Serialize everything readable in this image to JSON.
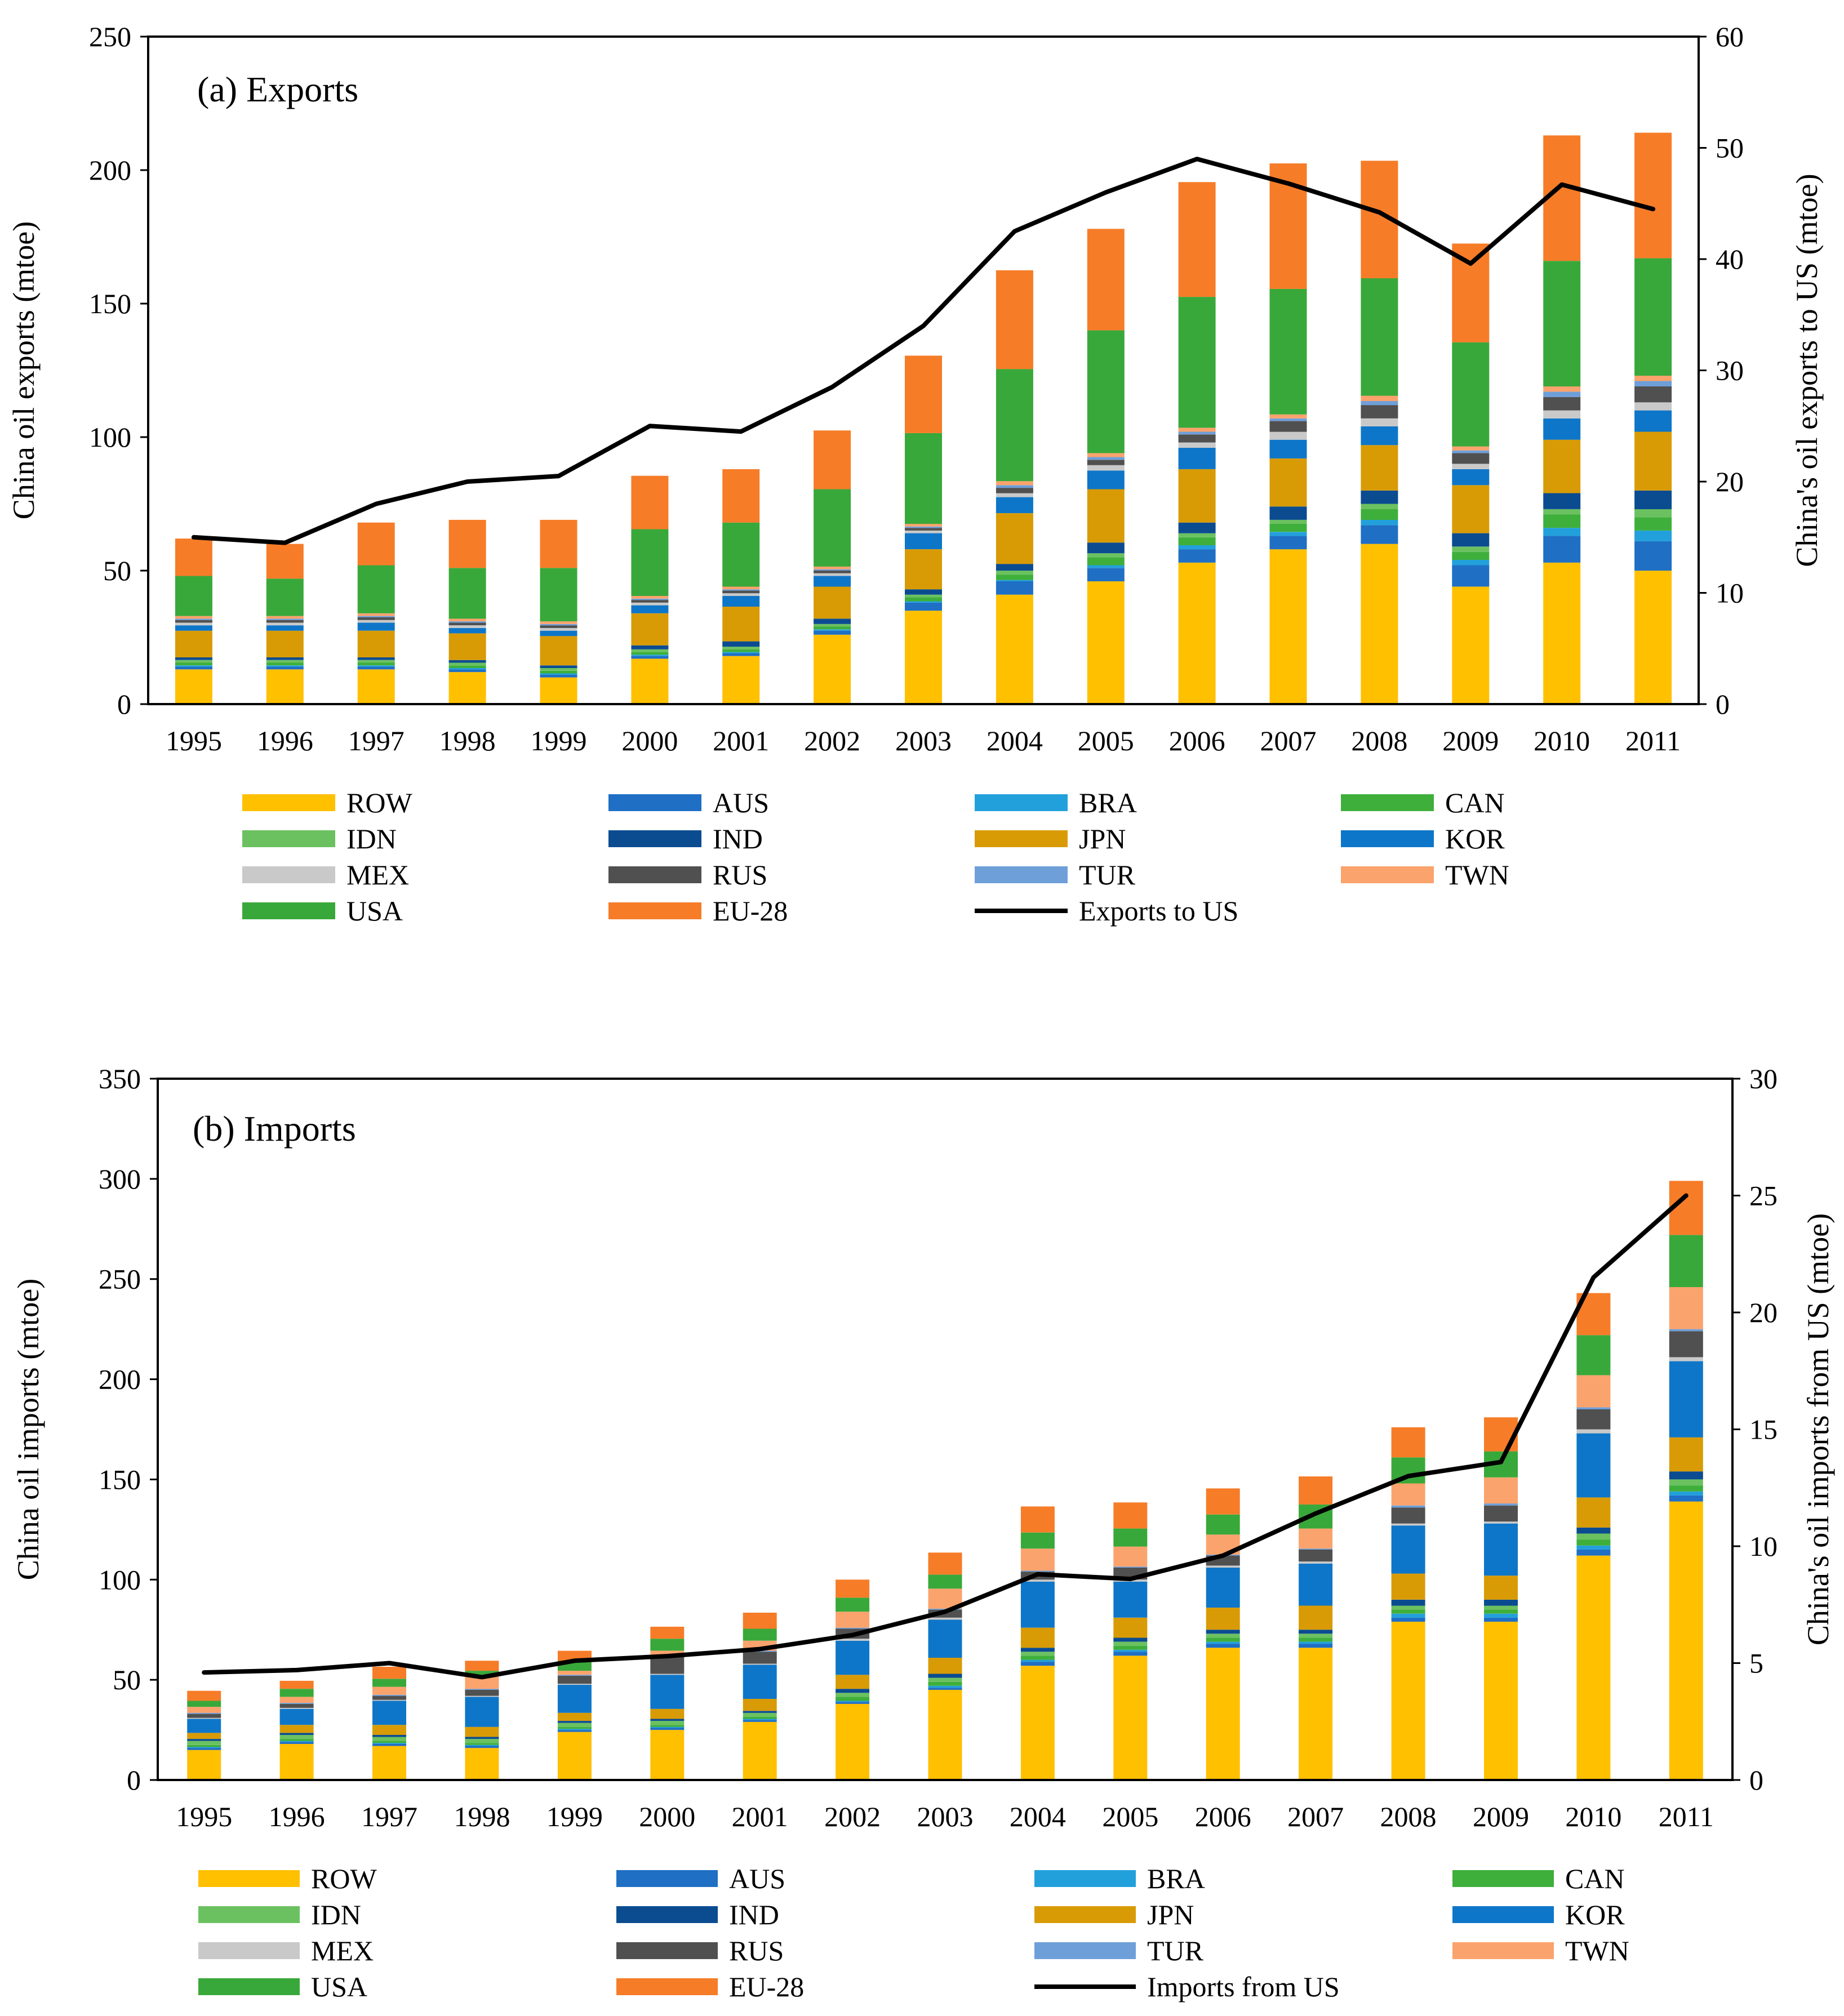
{
  "colors": {
    "ROW": "#FFC000",
    "AUS": "#1F6FC4",
    "BRA": "#22A0DB",
    "CAN": "#3FAF3B",
    "IDN": "#6BC160",
    "IND": "#0B4C91",
    "JPN": "#D89B05",
    "KOR": "#0E76C8",
    "MEX": "#C9C9C9",
    "RUS": "#505050",
    "TUR": "#6E9FD9",
    "TWN": "#FBA36C",
    "USA": "#39A83A",
    "EU-28": "#F67C28",
    "line": "#000000"
  },
  "legend_order": [
    "ROW",
    "AUS",
    "BRA",
    "CAN",
    "IDN",
    "IND",
    "JPN",
    "KOR",
    "MEX",
    "RUS",
    "TUR",
    "TWN",
    "USA",
    "EU-28"
  ],
  "chart_data": [
    {
      "type": "bar",
      "stacked": true,
      "title": "(a) Exports",
      "ylabel": "China oil exports (mtoe)",
      "y2label": "China's oil exports to US (mtoe)",
      "ylim": [
        0,
        250
      ],
      "yticks": [
        0,
        50,
        100,
        150,
        200,
        250
      ],
      "y2lim": [
        0,
        60
      ],
      "y2ticks": [
        0,
        10,
        20,
        30,
        40,
        50,
        60
      ],
      "categories": [
        "1995",
        "1996",
        "1997",
        "1998",
        "1999",
        "2000",
        "2001",
        "2002",
        "2003",
        "2004",
        "2005",
        "2006",
        "2007",
        "2008",
        "2009",
        "2010",
        "2011"
      ],
      "series": [
        {
          "name": "ROW",
          "values": [
            13,
            13,
            13,
            12,
            10,
            17,
            18,
            26,
            35,
            41,
            46,
            53,
            58,
            60,
            44,
            53,
            50
          ]
        },
        {
          "name": "AUS",
          "values": [
            1,
            1,
            1,
            1,
            1,
            1,
            1,
            1.5,
            3,
            5,
            5,
            5,
            5,
            7,
            8,
            10,
            11
          ]
        },
        {
          "name": "BRA",
          "values": [
            0.5,
            0.5,
            0.5,
            0.5,
            0.5,
            0.5,
            0.5,
            0.5,
            0.5,
            0.5,
            1,
            1.5,
            1.5,
            2,
            2,
            3,
            4
          ]
        },
        {
          "name": "CAN",
          "values": [
            1,
            1,
            1,
            1,
            1,
            1,
            1,
            1,
            1.5,
            2,
            3,
            3,
            3,
            4,
            3,
            5,
            5
          ]
        },
        {
          "name": "IDN",
          "values": [
            1,
            1,
            1,
            1,
            1,
            1,
            1,
            1,
            1,
            1.5,
            1.5,
            1.5,
            1.5,
            2,
            2,
            2,
            3
          ]
        },
        {
          "name": "IND",
          "values": [
            1,
            1,
            1,
            1,
            1,
            1.5,
            2,
            2,
            2,
            2.5,
            4,
            4,
            5,
            5,
            5,
            6,
            7
          ]
        },
        {
          "name": "JPN",
          "values": [
            10,
            10,
            10,
            10,
            11,
            12,
            13,
            12,
            15,
            19,
            20,
            20,
            18,
            17,
            18,
            20,
            22
          ]
        },
        {
          "name": "KOR",
          "values": [
            2,
            2,
            3,
            2,
            2,
            3,
            4,
            4,
            6,
            6,
            7,
            8,
            7,
            7,
            6,
            8,
            8
          ]
        },
        {
          "name": "MEX",
          "values": [
            1,
            1,
            1,
            1,
            1,
            1,
            1,
            1,
            1,
            1.5,
            2,
            2,
            3,
            3,
            2,
            3,
            3
          ]
        },
        {
          "name": "RUS",
          "values": [
            1,
            1,
            1,
            1,
            1,
            1,
            1,
            1,
            1,
            2,
            2,
            3,
            4,
            5,
            4,
            5,
            6
          ]
        },
        {
          "name": "TUR",
          "values": [
            0.5,
            0.5,
            0.5,
            0.5,
            0.5,
            0.5,
            0.5,
            0.5,
            0.5,
            1,
            1,
            1,
            1,
            1.5,
            1,
            2,
            2
          ]
        },
        {
          "name": "TWN",
          "values": [
            1,
            1,
            1,
            1,
            1,
            1,
            1,
            1,
            1,
            1.5,
            1.5,
            1.5,
            1.5,
            2,
            1.5,
            2,
            2
          ]
        },
        {
          "name": "USA",
          "values": [
            15,
            14,
            18,
            19,
            20,
            25,
            24,
            29,
            34,
            42,
            46,
            49,
            47,
            44,
            39,
            47,
            44
          ]
        },
        {
          "name": "EU-28",
          "values": [
            14,
            13,
            16,
            18,
            18,
            20,
            20,
            22,
            29,
            37,
            38,
            43,
            47,
            44,
            37,
            47,
            47
          ]
        }
      ],
      "line": {
        "name": "Exports to US",
        "values": [
          15,
          14.5,
          18,
          20,
          20.5,
          25,
          24.5,
          28.5,
          34,
          42.5,
          46,
          49,
          46.8,
          44.2,
          39.6,
          46.7,
          44.5
        ]
      }
    },
    {
      "type": "bar",
      "stacked": true,
      "title": "(b) Imports",
      "ylabel": "China oil imports (mtoe)",
      "y2label": "China's oil imports  from US (mtoe)",
      "ylim": [
        0,
        350
      ],
      "yticks": [
        0,
        50,
        100,
        150,
        200,
        250,
        300,
        350
      ],
      "y2lim": [
        0,
        30
      ],
      "y2ticks": [
        0,
        5,
        10,
        15,
        20,
        25,
        30
      ],
      "categories": [
        "1995",
        "1996",
        "1997",
        "1998",
        "1999",
        "2000",
        "2001",
        "2002",
        "2003",
        "2004",
        "2005",
        "2006",
        "2007",
        "2008",
        "2009",
        "2010",
        "2011"
      ],
      "series": [
        {
          "name": "ROW",
          "values": [
            15,
            18,
            17,
            16,
            24,
            25,
            29,
            38,
            45,
            57,
            62,
            66,
            66,
            79,
            79,
            112,
            139
          ]
        },
        {
          "name": "AUS",
          "values": [
            1,
            1,
            1,
            1,
            1,
            1,
            1,
            1,
            1,
            2,
            2,
            2,
            2,
            2,
            2,
            3,
            3
          ]
        },
        {
          "name": "BRA",
          "values": [
            0.5,
            0.5,
            0.5,
            0.5,
            0.5,
            0.5,
            0.5,
            0.5,
            1,
            1,
            1,
            1,
            1,
            2,
            2,
            2,
            2
          ]
        },
        {
          "name": "CAN",
          "values": [
            1,
            1,
            1,
            1,
            1,
            1,
            1,
            2,
            2,
            2,
            2,
            2,
            2,
            2,
            2,
            3,
            3
          ]
        },
        {
          "name": "IDN",
          "values": [
            2,
            2,
            2,
            2,
            2,
            2,
            2,
            2,
            2,
            2,
            2,
            2,
            2,
            2,
            2,
            3,
            3
          ]
        },
        {
          "name": "IND",
          "values": [
            1,
            1,
            1,
            1,
            1,
            1,
            1,
            2,
            2,
            2,
            2,
            2,
            2,
            3,
            3,
            3,
            4
          ]
        },
        {
          "name": "JPN",
          "values": [
            3,
            4,
            5,
            5,
            4,
            5,
            6,
            7,
            8,
            10,
            10,
            11,
            12,
            13,
            12,
            15,
            17
          ]
        },
        {
          "name": "KOR",
          "values": [
            7,
            8,
            12,
            15,
            14,
            17,
            17,
            17,
            19,
            23,
            18,
            20,
            21,
            24,
            26,
            32,
            38
          ]
        },
        {
          "name": "MEX",
          "values": [
            0.5,
            0.5,
            0.5,
            0.5,
            0.5,
            0.5,
            0.5,
            1,
            1,
            1,
            1,
            1,
            1,
            1,
            1,
            2,
            2
          ]
        },
        {
          "name": "RUS",
          "values": [
            2,
            2,
            2,
            3,
            4,
            9,
            6,
            5,
            4,
            4,
            6,
            5,
            6,
            8,
            8,
            10,
            13
          ]
        },
        {
          "name": "TUR",
          "values": [
            0.5,
            0.5,
            0.5,
            0.5,
            0.5,
            0.5,
            0.5,
            0.5,
            0.5,
            0.5,
            0.5,
            0.5,
            0.5,
            1,
            1,
            1,
            1
          ]
        },
        {
          "name": "TWN",
          "values": [
            3,
            3,
            4,
            7,
            2,
            2,
            5,
            8,
            10,
            11,
            10,
            10,
            10,
            11,
            13,
            16,
            21
          ]
        },
        {
          "name": "USA",
          "values": [
            3,
            4,
            4,
            2,
            5,
            6,
            6,
            7,
            7,
            8,
            9,
            10,
            12,
            13,
            13,
            20,
            26
          ]
        },
        {
          "name": "EU-28",
          "values": [
            5,
            4,
            6,
            5,
            5,
            6,
            8,
            9,
            11,
            13,
            13,
            13,
            14,
            15,
            17,
            21,
            27
          ]
        }
      ],
      "line": {
        "name": "Imports from US",
        "values": [
          4.6,
          4.7,
          5,
          4.4,
          5.1,
          5.3,
          5.6,
          6.2,
          7.2,
          8.8,
          8.6,
          9.6,
          11.4,
          13,
          13.6,
          21.5,
          25
        ]
      }
    }
  ]
}
